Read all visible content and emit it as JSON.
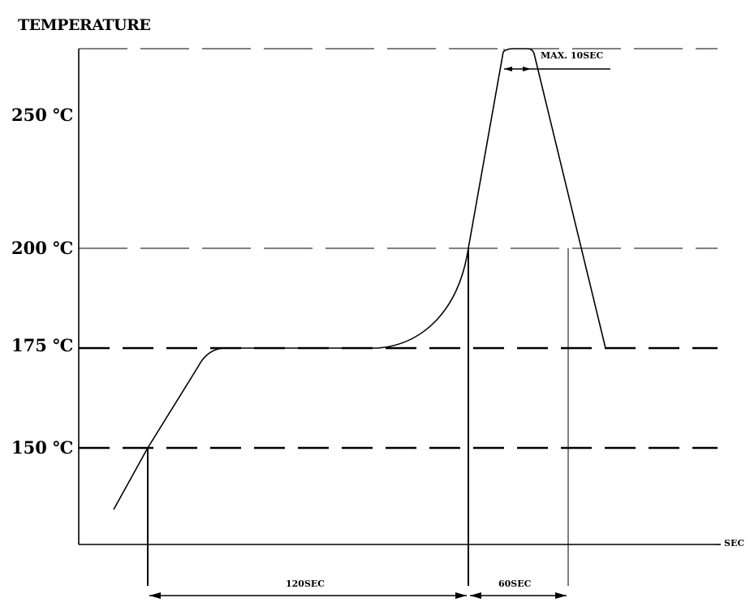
{
  "chart_data": {
    "type": "line",
    "title": "TEMPERATURE",
    "xlabel": "SEC",
    "ylabel": "TEMPERATURE",
    "yticks": [
      "250 ℃",
      "200 ℃",
      "175 ℃",
      "150 ℃"
    ],
    "ytick_values": [
      250,
      200,
      175,
      150
    ],
    "reference_lines": [
      {
        "value": 250,
        "style": "thin-dash"
      },
      {
        "value": 200,
        "style": "thin-dash"
      },
      {
        "value": 175,
        "style": "thick-dash"
      },
      {
        "value": 150,
        "style": "thick-dash"
      }
    ],
    "annotations": {
      "preheat": "120SEC",
      "above_200": "60SEC",
      "peak": "MAX. 10SEC"
    },
    "x": [
      -20,
      0,
      44,
      140,
      180,
      191,
      201,
      224
    ],
    "y": [
      134,
      150,
      175,
      175,
      200,
      250,
      250,
      175
    ]
  }
}
